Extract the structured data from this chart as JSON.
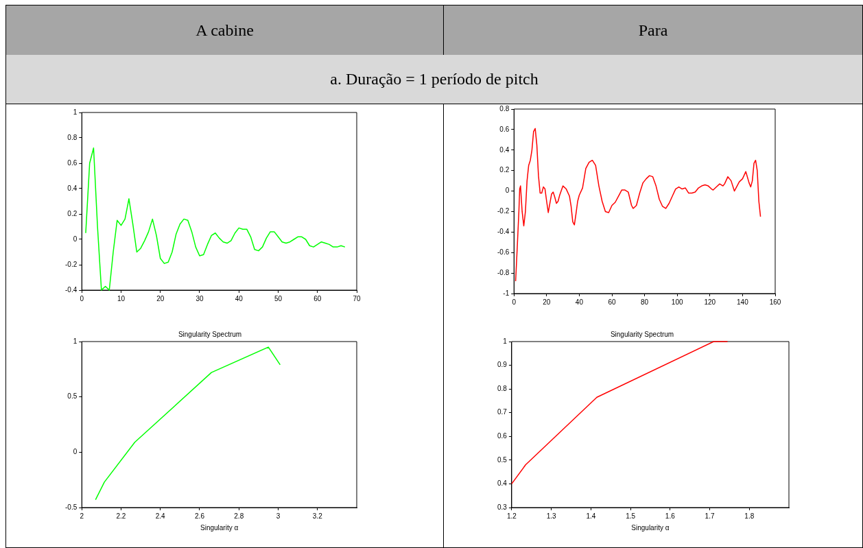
{
  "chart_data": [
    {
      "type": "line",
      "annotations": [
        "A cabine",
        "a.  Duração = 1 período de pitch"
      ],
      "xlim": [
        0,
        70
      ],
      "xticks": [
        0,
        10,
        20,
        30,
        40,
        50,
        60,
        70
      ],
      "ylim": [
        -0.4,
        1
      ],
      "yticks": [
        -0.4,
        -0.2,
        0,
        0.2,
        0.4,
        0.6,
        0.8,
        1
      ],
      "grid": false,
      "marker": "none",
      "line_style": "solid",
      "series": [
        {
          "color": "#00ff00",
          "x": [
            1,
            2,
            3,
            4,
            5,
            6,
            7,
            8,
            9,
            10,
            11,
            12,
            13,
            14,
            15,
            16,
            17,
            18,
            19,
            20,
            21,
            22,
            23,
            24,
            25,
            26,
            27,
            28,
            29,
            30,
            31,
            32,
            33,
            34,
            35,
            36,
            37,
            38,
            39,
            40,
            41,
            42,
            43,
            44,
            45,
            46,
            47,
            48,
            49,
            50,
            51,
            52,
            53,
            54,
            55,
            56,
            57,
            58,
            59,
            60,
            61,
            62,
            63,
            64,
            65,
            66,
            67
          ],
          "values": [
            0.05,
            0.6,
            0.72,
            0.1,
            -0.4,
            -0.37,
            -0.4,
            -0.1,
            0.15,
            0.11,
            0.16,
            0.32,
            0.12,
            -0.1,
            -0.07,
            -0.01,
            0.06,
            0.16,
            0.03,
            -0.15,
            -0.19,
            -0.18,
            -0.1,
            0.04,
            0.12,
            0.16,
            0.15,
            0.06,
            -0.06,
            -0.13,
            -0.12,
            -0.04,
            0.03,
            0.05,
            0.01,
            -0.02,
            -0.03,
            -0.01,
            0.05,
            0.09,
            0.08,
            0.08,
            0.02,
            -0.08,
            -0.09,
            -0.06,
            0.01,
            0.06,
            0.06,
            0.02,
            -0.02,
            -0.03,
            -0.02,
            0,
            0.02,
            0.02,
            0,
            -0.05,
            -0.06,
            -0.04,
            -0.02,
            -0.03,
            -0.04,
            -0.06,
            -0.06,
            -0.05,
            -0.06
          ]
        }
      ]
    },
    {
      "type": "line",
      "annotations": [
        "Para"
      ],
      "xlim": [
        0,
        160
      ],
      "xticks": [
        0,
        20,
        40,
        60,
        80,
        100,
        120,
        140,
        160
      ],
      "ylim": [
        -1,
        0.8
      ],
      "yticks": [
        -1,
        -0.8,
        -0.6,
        -0.4,
        -0.2,
        0,
        0.2,
        0.4,
        0.6,
        0.8
      ],
      "grid": false,
      "marker": "none",
      "line_style": "solid",
      "series": [
        {
          "color": "#ff0000",
          "x": [
            1,
            2,
            3,
            3.5,
            4,
            5,
            6,
            7,
            8,
            9,
            10,
            11,
            12,
            13,
            14,
            15,
            16,
            17,
            18,
            19,
            20,
            21,
            22,
            23,
            24,
            25,
            26,
            27,
            28,
            30,
            32,
            34,
            35,
            36,
            37,
            38,
            39,
            40,
            42,
            44,
            46,
            48,
            50,
            52,
            54,
            56,
            58,
            60,
            62,
            64,
            66,
            68,
            70,
            72,
            73,
            75,
            77,
            79,
            81,
            83,
            85,
            87,
            89,
            91,
            93,
            95,
            97,
            99,
            101,
            103,
            105,
            107,
            109,
            111,
            113,
            115,
            117,
            119,
            121,
            122,
            124,
            126,
            128,
            129,
            131,
            133,
            135,
            137,
            138,
            140,
            142,
            144,
            145,
            146,
            147,
            148,
            149,
            150,
            151
          ],
          "values": [
            -0.88,
            -0.55,
            -0.2,
            0.02,
            0.05,
            -0.2,
            -0.34,
            -0.2,
            0.1,
            0.25,
            0.3,
            0.4,
            0.58,
            0.61,
            0.45,
            0.15,
            -0.02,
            -0.02,
            0.04,
            0.02,
            -0.1,
            -0.21,
            -0.12,
            -0.03,
            -0.01,
            -0.06,
            -0.12,
            -0.1,
            -0.04,
            0.05,
            0.02,
            -0.05,
            -0.15,
            -0.3,
            -0.33,
            -0.22,
            -0.1,
            -0.04,
            0.03,
            0.22,
            0.28,
            0.3,
            0.25,
            0.05,
            -0.1,
            -0.2,
            -0.21,
            -0.14,
            -0.11,
            -0.05,
            0.01,
            0.01,
            -0.01,
            -0.14,
            -0.17,
            -0.14,
            -0.02,
            0.08,
            0.12,
            0.15,
            0.14,
            0.05,
            -0.08,
            -0.15,
            -0.17,
            -0.12,
            -0.05,
            0.02,
            0.04,
            0.02,
            0.03,
            -0.02,
            -0.02,
            -0.01,
            0.03,
            0.05,
            0.06,
            0.05,
            0.02,
            0.01,
            0.04,
            0.07,
            0.05,
            0.07,
            0.14,
            0.1,
            0,
            0.06,
            0.09,
            0.12,
            0.19,
            0.08,
            0.04,
            0.1,
            0.27,
            0.3,
            0.2,
            -0.1,
            -0.25
          ]
        }
      ]
    },
    {
      "type": "line",
      "title": "Singularity Spectrum",
      "xlabel": "Singularity α",
      "xlim": [
        2,
        3.4
      ],
      "xticks": [
        2,
        2.2,
        2.4,
        2.6,
        2.8,
        3,
        3.2
      ],
      "ylim": [
        -0.5,
        1
      ],
      "yticks": [
        -0.5,
        0,
        0.5,
        1
      ],
      "grid": false,
      "marker": "none",
      "line_style": "solid",
      "series": [
        {
          "color": "#00ff00",
          "x": [
            2.07,
            2.115,
            2.27,
            2.66,
            2.95,
            3.01
          ],
          "values": [
            -0.43,
            -0.27,
            0.09,
            0.72,
            0.95,
            0.79
          ]
        }
      ]
    },
    {
      "type": "line",
      "title": "Singularity Spectrum",
      "xlabel": "Singularity α",
      "xlim": [
        1.2,
        1.9
      ],
      "xticks": [
        1.2,
        1.3,
        1.4,
        1.5,
        1.6,
        1.7,
        1.8
      ],
      "ylim": [
        0.3,
        1
      ],
      "yticks": [
        0.3,
        0.4,
        0.5,
        0.6,
        0.7,
        0.8,
        0.9,
        1
      ],
      "grid": false,
      "marker": "none",
      "line_style": "solid",
      "series": [
        {
          "color": "#ff0000",
          "x": [
            1.2,
            1.235,
            1.415,
            1.71,
            1.745
          ],
          "values": [
            0.4,
            0.48,
            0.765,
            1,
            1
          ]
        }
      ]
    }
  ]
}
